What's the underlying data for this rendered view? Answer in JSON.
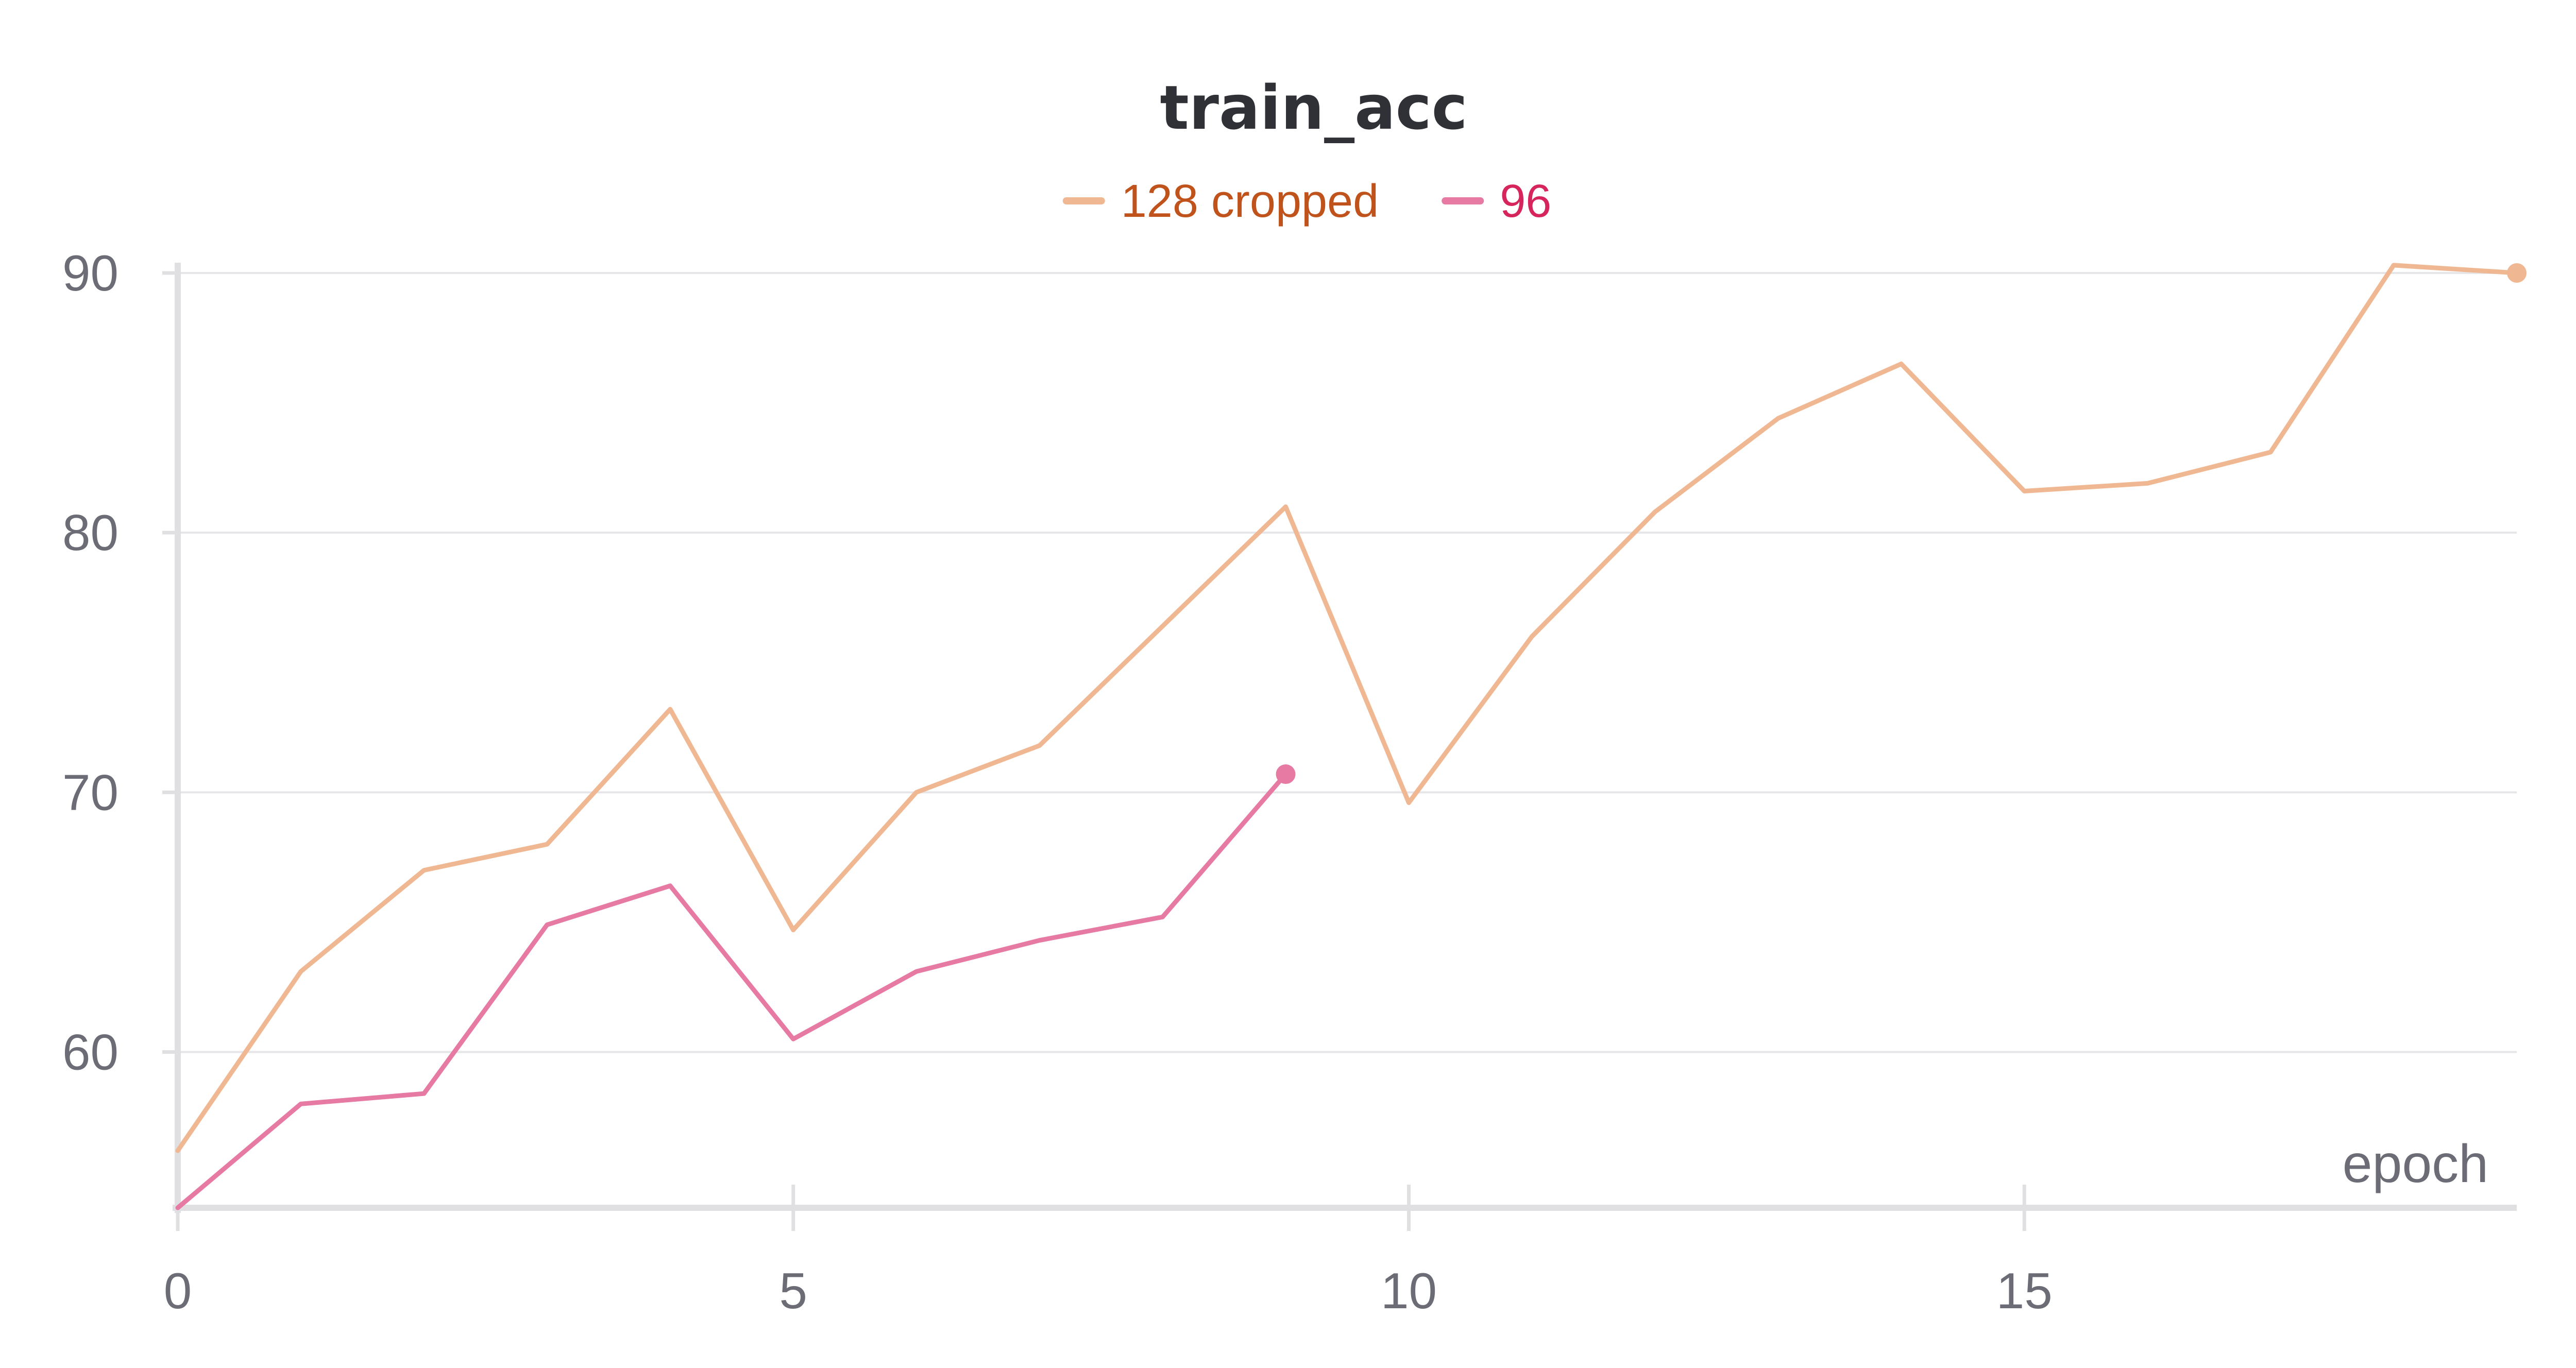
{
  "chart_data": {
    "type": "line",
    "title": "train_acc",
    "xlabel": "epoch",
    "ylabel": "",
    "xlim": [
      0,
      19
    ],
    "ylim": [
      54,
      90
    ],
    "x_ticks": [
      0,
      5,
      10,
      15
    ],
    "y_ticks": [
      60,
      70,
      80,
      90
    ],
    "grid": true,
    "legend_position": "top-center",
    "series": [
      {
        "name": "128 cropped",
        "color": "#f0b892",
        "label_color": "#c0531b",
        "x": [
          0,
          1,
          2,
          3,
          4,
          5,
          6,
          7,
          8,
          9,
          10,
          11,
          12,
          13,
          14,
          15,
          16,
          17,
          18,
          19
        ],
        "y": [
          56.2,
          63.1,
          67.0,
          68.0,
          73.2,
          64.7,
          70.0,
          71.8,
          76.4,
          81.0,
          69.6,
          76.0,
          80.8,
          84.4,
          86.5,
          81.6,
          81.9,
          83.1,
          90.3,
          90.0
        ]
      },
      {
        "name": "96",
        "color": "#e67aa2",
        "label_color": "#d6245c",
        "x": [
          0,
          1,
          2,
          3,
          4,
          5,
          6,
          7,
          8,
          9
        ],
        "y": [
          54.0,
          58.0,
          58.4,
          64.9,
          66.4,
          60.5,
          63.1,
          64.3,
          65.2,
          70.7
        ]
      }
    ]
  }
}
